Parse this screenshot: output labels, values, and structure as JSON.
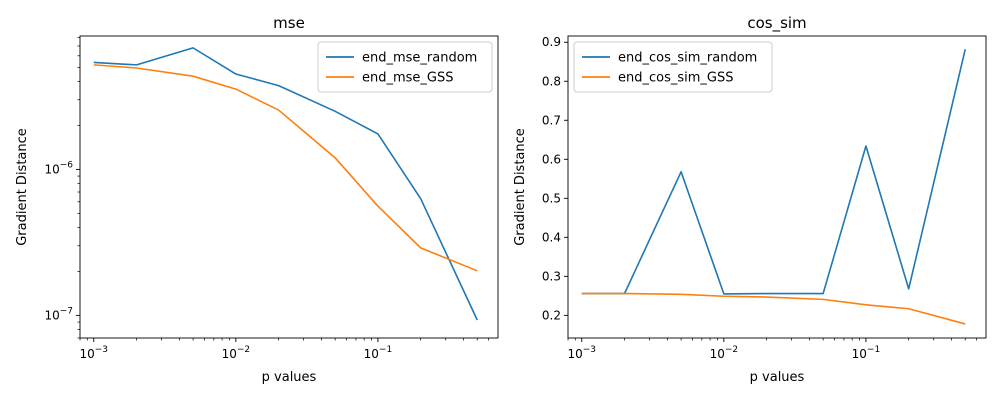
{
  "chart_data": [
    {
      "type": "line",
      "title": "mse",
      "xlabel": "p values",
      "ylabel": "Gradient Distance",
      "xscale": "log",
      "yscale": "log",
      "xlim": [
        0.0008,
        0.7
      ],
      "ylim": [
        7e-08,
        8.2e-06
      ],
      "grid": false,
      "legend": "top-right",
      "x": [
        0.001,
        0.002,
        0.005,
        0.01,
        0.02,
        0.05,
        0.1,
        0.2,
        0.5
      ],
      "xticks": [
        {
          "value": 0.001,
          "base": "10",
          "exp": "−3"
        },
        {
          "value": 0.01,
          "base": "10",
          "exp": "−2"
        },
        {
          "value": 0.1,
          "base": "10",
          "exp": "−1"
        }
      ],
      "yticks": [
        {
          "value": 1e-07,
          "base": "10",
          "exp": "−7"
        },
        {
          "value": 1e-06,
          "base": "10",
          "exp": "−6"
        }
      ],
      "series": [
        {
          "name": "end_mse_random",
          "color": "#1f77b4",
          "values": [
            5.4e-06,
            5.2e-06,
            6.8e-06,
            4.5e-06,
            3.75e-06,
            2.5e-06,
            1.75e-06,
            6.3e-07,
            9.3e-08
          ]
        },
        {
          "name": "end_mse_GSS",
          "color": "#ff7f0e",
          "values": [
            5.2e-06,
            4.95e-06,
            4.35e-06,
            3.55e-06,
            2.55e-06,
            1.2e-06,
            5.6e-07,
            2.9e-07,
            2.02e-07
          ]
        }
      ]
    },
    {
      "type": "line",
      "title": "cos_sim",
      "xlabel": "p values",
      "ylabel": "Gradient Distance",
      "xscale": "log",
      "yscale": "linear",
      "xlim": [
        0.0008,
        0.7
      ],
      "ylim": [
        0.142,
        0.916
      ],
      "grid": false,
      "legend": "top-left",
      "x": [
        0.001,
        0.002,
        0.005,
        0.01,
        0.02,
        0.05,
        0.1,
        0.2,
        0.5
      ],
      "xticks": [
        {
          "value": 0.001,
          "base": "10",
          "exp": "−3"
        },
        {
          "value": 0.01,
          "base": "10",
          "exp": "−2"
        },
        {
          "value": 0.1,
          "base": "10",
          "exp": "−1"
        }
      ],
      "yticks": [
        {
          "value": 0.2,
          "label": "0.2"
        },
        {
          "value": 0.3,
          "label": "0.3"
        },
        {
          "value": 0.4,
          "label": "0.4"
        },
        {
          "value": 0.5,
          "label": "0.5"
        },
        {
          "value": 0.6,
          "label": "0.6"
        },
        {
          "value": 0.7,
          "label": "0.7"
        },
        {
          "value": 0.8,
          "label": "0.8"
        },
        {
          "value": 0.9,
          "label": "0.9"
        }
      ],
      "series": [
        {
          "name": "end_cos_sim_random",
          "color": "#1f77b4",
          "values": [
            0.256,
            0.256,
            0.568,
            0.255,
            0.256,
            0.256,
            0.634,
            0.268,
            0.882
          ]
        },
        {
          "name": "end_cos_sim_GSS",
          "color": "#ff7f0e",
          "values": [
            0.256,
            0.256,
            0.254,
            0.249,
            0.247,
            0.241,
            0.227,
            0.217,
            0.178
          ]
        }
      ]
    }
  ]
}
